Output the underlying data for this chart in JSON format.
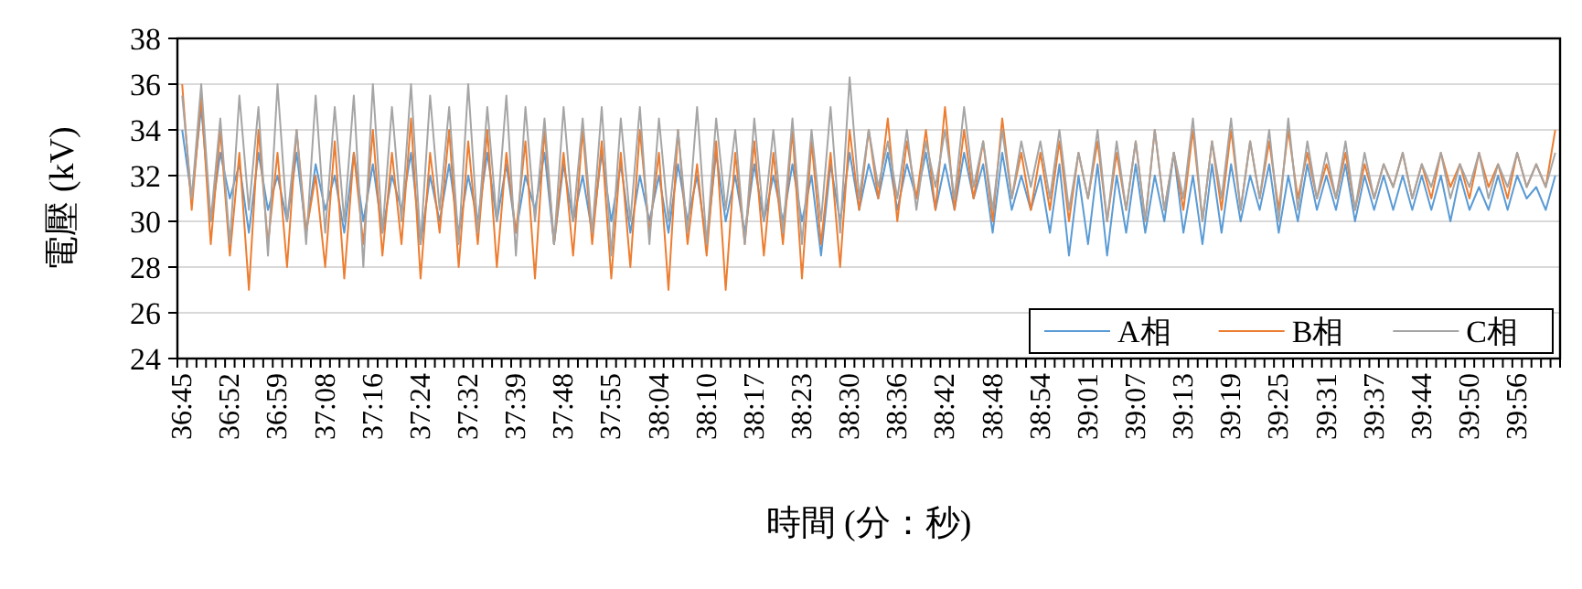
{
  "chart_data": {
    "type": "line",
    "xlabel": "時間 (分：秒)",
    "ylabel": "電壓 (kV)",
    "categories": [
      "36:45",
      null,
      null,
      null,
      null,
      "36:52",
      null,
      null,
      null,
      null,
      "36:59",
      null,
      null,
      null,
      null,
      "37:08",
      null,
      null,
      null,
      null,
      "37:16",
      null,
      null,
      null,
      null,
      "37:24",
      null,
      null,
      null,
      null,
      "37:32",
      null,
      null,
      null,
      null,
      "37:39",
      null,
      null,
      null,
      null,
      "37:48",
      null,
      null,
      null,
      null,
      "37:55",
      null,
      null,
      null,
      null,
      "38:04",
      null,
      null,
      null,
      null,
      "38:10",
      null,
      null,
      null,
      null,
      "38:17",
      null,
      null,
      null,
      null,
      "38:23",
      null,
      null,
      null,
      null,
      "38:30",
      null,
      null,
      null,
      null,
      "38:36",
      null,
      null,
      null,
      null,
      "38:42",
      null,
      null,
      null,
      null,
      "38:48",
      null,
      null,
      null,
      null,
      "38:54",
      null,
      null,
      null,
      null,
      "39:01",
      null,
      null,
      null,
      null,
      "39:07",
      null,
      null,
      null,
      null,
      "39:13",
      null,
      null,
      null,
      null,
      "39:19",
      null,
      null,
      null,
      null,
      "39:25",
      null,
      null,
      null,
      null,
      "39:31",
      null,
      null,
      null,
      null,
      "39:37",
      null,
      null,
      null,
      null,
      "39:44",
      null,
      null,
      null,
      null,
      "39:50",
      null,
      null,
      null,
      null,
      "39:56",
      null,
      null,
      null,
      null
    ],
    "series": [
      {
        "name": "A相",
        "color": "#5b9bd5",
        "values": [
          34,
          31,
          35,
          30,
          33,
          31,
          32.5,
          29.5,
          33,
          30.5,
          32,
          30,
          33,
          29.5,
          32.5,
          30.5,
          32,
          29.5,
          33,
          30,
          32.5,
          29.5,
          32,
          30.5,
          33,
          29,
          32,
          30,
          32.5,
          29.5,
          32,
          30,
          33,
          30,
          32.5,
          29.5,
          32,
          30.5,
          33,
          29,
          32.5,
          30,
          32,
          29.5,
          33,
          30,
          32.5,
          29.5,
          32,
          30,
          32,
          29.5,
          32.5,
          30,
          32,
          29,
          33,
          30,
          32,
          29.5,
          32.5,
          30,
          32,
          30,
          32.5,
          30,
          32,
          28.5,
          32.5,
          30,
          33,
          30.5,
          32.5,
          31,
          33,
          30.5,
          32.5,
          31,
          33,
          30.5,
          32.5,
          30.5,
          33,
          31,
          32.5,
          29.5,
          33,
          30.5,
          32,
          30.5,
          32,
          29.5,
          32.5,
          28.5,
          32,
          29,
          32.5,
          28.5,
          32,
          29.5,
          32.5,
          29.5,
          32,
          30,
          33,
          29.5,
          32,
          29,
          32.5,
          29.5,
          32.5,
          30,
          32,
          30.5,
          32.5,
          29.5,
          32,
          30,
          32.5,
          30.5,
          32,
          30.5,
          32.5,
          30,
          32,
          30.5,
          32,
          30.5,
          32,
          30.5,
          32,
          30.5,
          32,
          30,
          32,
          30.5,
          31.5,
          30.5,
          32,
          30.5,
          32,
          31,
          31.5,
          30.5,
          32
        ]
      },
      {
        "name": "B相",
        "color": "#ed7d31",
        "values": [
          36,
          30.5,
          35.5,
          29,
          34,
          28.5,
          33,
          27,
          34,
          29,
          33,
          28,
          34,
          29.5,
          32,
          28,
          33.5,
          27.5,
          33,
          29,
          34,
          28.5,
          33,
          29,
          34.5,
          27.5,
          33,
          29.5,
          34,
          28,
          33.5,
          29,
          34,
          28,
          33,
          29.5,
          33.5,
          27.5,
          34,
          29,
          33,
          28.5,
          34,
          29,
          33.5,
          27.5,
          33,
          28,
          34,
          29.5,
          33,
          27,
          34,
          29,
          32.5,
          28.5,
          33.5,
          27,
          33,
          29,
          33.5,
          28.5,
          33,
          29,
          34,
          27.5,
          33.5,
          29,
          33,
          28,
          34,
          30.5,
          34,
          31,
          34.5,
          30,
          33.5,
          31,
          34,
          30.5,
          35,
          30.5,
          34,
          31,
          33.5,
          30,
          34.5,
          31,
          33,
          30.5,
          33,
          30.5,
          33.5,
          30,
          33,
          31,
          33.5,
          30,
          33,
          30.5,
          33.5,
          30,
          34,
          30.5,
          33,
          30.5,
          34,
          30,
          33.5,
          30.5,
          34,
          30.5,
          33.5,
          31,
          33.5,
          30.5,
          34,
          31,
          33,
          31,
          32.5,
          31,
          33,
          30.5,
          32.5,
          31,
          32.5,
          31.5,
          33,
          31,
          32.5,
          31,
          33,
          31.5,
          32.5,
          31,
          33,
          31.5,
          32.5,
          31,
          33,
          31.5,
          32.5,
          31.5,
          34
        ]
      },
      {
        "name": "C相",
        "color": "#a5a5a5",
        "values": [
          35.5,
          31,
          36,
          30,
          34.5,
          29,
          35.5,
          30.5,
          35,
          28.5,
          36,
          30,
          34,
          29,
          35.5,
          29.5,
          35,
          30,
          35.5,
          28,
          36,
          29.5,
          35,
          30,
          36,
          29,
          35.5,
          30.5,
          35,
          29,
          36,
          29.5,
          35,
          30,
          35.5,
          28.5,
          35,
          30,
          34.5,
          29,
          35,
          30,
          34.5,
          29.5,
          35,
          28.5,
          34.5,
          30,
          35,
          29,
          34.5,
          30,
          34,
          29.5,
          35,
          29,
          34.5,
          30.5,
          34,
          29,
          34.5,
          30,
          34,
          29.5,
          34.5,
          29,
          34,
          30,
          35,
          29.5,
          36.3,
          31,
          34,
          31.5,
          33.5,
          31,
          34,
          30.5,
          33.5,
          31.5,
          34,
          31,
          35,
          31.5,
          33.5,
          30.5,
          34,
          31,
          33.5,
          31.5,
          33.5,
          31,
          34,
          30.5,
          33,
          31,
          34,
          30,
          33.5,
          30.5,
          33.5,
          30,
          34,
          30.5,
          33,
          31,
          34.5,
          30,
          33.5,
          31,
          34.5,
          30.5,
          33.5,
          31,
          34,
          30,
          34.5,
          30.5,
          33.5,
          31,
          33,
          31,
          33.5,
          30.5,
          33,
          31,
          32.5,
          31.5,
          33,
          31,
          32.5,
          31.5,
          33,
          31,
          32.5,
          31.5,
          33,
          31,
          32.5,
          31.5,
          33,
          31.5,
          32.5,
          31.5,
          33
        ]
      }
    ],
    "ylim": [
      24,
      38
    ],
    "yticks": [
      24,
      26,
      28,
      30,
      32,
      34,
      36,
      38
    ],
    "grid": "y",
    "legend": "bottom right"
  }
}
